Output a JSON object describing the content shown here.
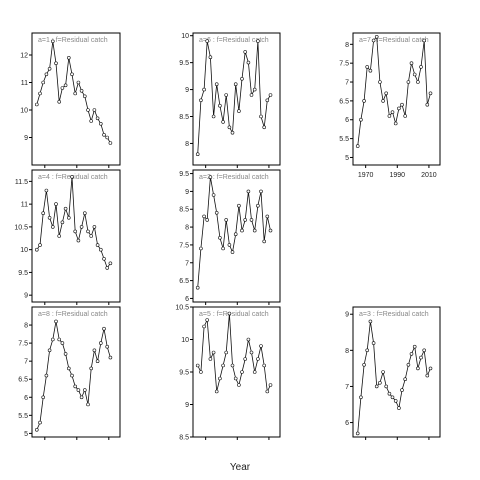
{
  "chart_data": {
    "type": "line",
    "xlabel": "Year",
    "x_ticks": [
      1970,
      1990,
      2010
    ],
    "panels": [
      {
        "title": "a=1 : f=Residual catch",
        "yticks": [
          9,
          10,
          11,
          12
        ],
        "ylim": [
          8.0,
          12.8
        ],
        "x": [
          1965,
          1967,
          1969,
          1971,
          1973,
          1975,
          1977,
          1979,
          1981,
          1983,
          1985,
          1987,
          1989,
          1991,
          1993,
          1995,
          1997,
          1999,
          2001,
          2003,
          2005,
          2007,
          2009,
          2011
        ],
        "y": [
          10.2,
          10.6,
          11.0,
          11.3,
          11.5,
          12.5,
          11.7,
          10.3,
          10.8,
          10.9,
          11.9,
          11.3,
          10.6,
          11.0,
          10.7,
          10.5,
          10.0,
          9.6,
          10.0,
          9.7,
          9.5,
          9.1,
          9.0,
          8.8
        ]
      },
      {
        "title": "a=6 : f=Residual catch",
        "yticks": [
          8.0,
          8.5,
          9.0,
          9.5,
          10.0
        ],
        "ylim": [
          7.6,
          10.05
        ],
        "x": [
          1965,
          1967,
          1969,
          1971,
          1973,
          1975,
          1977,
          1979,
          1981,
          1983,
          1985,
          1987,
          1989,
          1991,
          1993,
          1995,
          1997,
          1999,
          2001,
          2003,
          2005,
          2007,
          2009,
          2011
        ],
        "y": [
          7.8,
          8.8,
          9.0,
          9.9,
          9.6,
          8.5,
          9.1,
          8.7,
          8.4,
          8.9,
          8.3,
          8.2,
          9.1,
          8.6,
          9.2,
          9.7,
          9.5,
          8.9,
          9.0,
          9.9,
          8.5,
          8.3,
          8.8,
          8.9
        ]
      },
      {
        "title": "a=7 : f=Residual catch",
        "yticks": [
          5.0,
          5.5,
          6.0,
          6.5,
          7.0,
          7.5,
          8.0
        ],
        "ylim": [
          4.8,
          8.3
        ],
        "x": [
          1965,
          1967,
          1969,
          1971,
          1973,
          1975,
          1977,
          1979,
          1981,
          1983,
          1985,
          1987,
          1989,
          1991,
          1993,
          1995,
          1997,
          1999,
          2001,
          2003,
          2005,
          2007,
          2009,
          2011
        ],
        "y": [
          5.3,
          6.0,
          6.5,
          7.4,
          7.3,
          8.1,
          8.2,
          7.0,
          6.5,
          6.7,
          6.1,
          6.2,
          5.9,
          6.3,
          6.4,
          6.1,
          7.0,
          7.5,
          7.2,
          7.0,
          7.4,
          8.1,
          6.4,
          6.7
        ]
      },
      {
        "title": "a=4 : f=Residual catch",
        "yticks": [
          9.0,
          9.5,
          10.0,
          10.5,
          11.0,
          11.5
        ],
        "ylim": [
          8.85,
          11.75
        ],
        "x": [
          1965,
          1967,
          1969,
          1971,
          1973,
          1975,
          1977,
          1979,
          1981,
          1983,
          1985,
          1987,
          1989,
          1991,
          1993,
          1995,
          1997,
          1999,
          2001,
          2003,
          2005,
          2007,
          2009,
          2011
        ],
        "y": [
          10.0,
          10.1,
          10.8,
          11.3,
          10.7,
          10.5,
          11.0,
          10.3,
          10.6,
          10.9,
          10.7,
          11.6,
          10.4,
          10.2,
          10.5,
          10.8,
          10.4,
          10.3,
          10.5,
          10.1,
          10.0,
          9.8,
          9.6,
          9.7
        ]
      },
      {
        "title": "a=2 : f=Residual catch",
        "yticks": [
          6.0,
          6.5,
          7.0,
          7.5,
          8.0,
          8.5,
          9.0,
          9.5
        ],
        "ylim": [
          5.9,
          9.6
        ],
        "x": [
          1965,
          1967,
          1969,
          1971,
          1973,
          1975,
          1977,
          1979,
          1981,
          1983,
          1985,
          1987,
          1989,
          1991,
          1993,
          1995,
          1997,
          1999,
          2001,
          2003,
          2005,
          2007,
          2009,
          2011
        ],
        "y": [
          6.3,
          7.4,
          8.3,
          8.2,
          9.4,
          8.9,
          8.4,
          7.7,
          7.4,
          8.2,
          7.5,
          7.3,
          7.8,
          8.6,
          7.9,
          8.2,
          9.0,
          8.2,
          7.9,
          8.6,
          9.0,
          7.6,
          8.3,
          7.9
        ]
      },
      {
        "title": "a=8 : f=Residual catch",
        "yticks": [
          5.0,
          5.5,
          6.0,
          6.5,
          7.0,
          7.5,
          8.0
        ],
        "ylim": [
          4.9,
          8.5
        ],
        "x": [
          1965,
          1967,
          1969,
          1971,
          1973,
          1975,
          1977,
          1979,
          1981,
          1983,
          1985,
          1987,
          1989,
          1991,
          1993,
          1995,
          1997,
          1999,
          2001,
          2003,
          2005,
          2007,
          2009,
          2011
        ],
        "y": [
          5.1,
          5.3,
          6.0,
          6.6,
          7.3,
          7.6,
          8.1,
          7.6,
          7.5,
          7.2,
          6.8,
          6.6,
          6.3,
          6.2,
          6.0,
          6.2,
          5.8,
          6.8,
          7.3,
          7.0,
          7.5,
          7.9,
          7.4,
          7.1
        ]
      },
      {
        "title": "a=5 : f=Residual catch",
        "yticks": [
          8.5,
          9.0,
          9.5,
          10.0,
          10.5
        ],
        "ylim": [
          8.5,
          10.5
        ],
        "x": [
          1965,
          1967,
          1969,
          1971,
          1973,
          1975,
          1977,
          1979,
          1981,
          1983,
          1985,
          1987,
          1989,
          1991,
          1993,
          1995,
          1997,
          1999,
          2001,
          2003,
          2005,
          2007,
          2009,
          2011
        ],
        "y": [
          9.6,
          9.5,
          10.2,
          10.3,
          9.7,
          9.8,
          9.2,
          9.4,
          9.6,
          9.8,
          10.4,
          9.6,
          9.4,
          9.3,
          9.5,
          9.7,
          10.0,
          9.8,
          9.5,
          9.7,
          9.9,
          9.6,
          9.2,
          9.3
        ]
      },
      {
        "title": "a=3 : f=Residual catch",
        "yticks": [
          6,
          7,
          8,
          9
        ],
        "ylim": [
          5.6,
          9.2
        ],
        "x": [
          1965,
          1967,
          1969,
          1971,
          1973,
          1975,
          1977,
          1979,
          1981,
          1983,
          1985,
          1987,
          1989,
          1991,
          1993,
          1995,
          1997,
          1999,
          2001,
          2003,
          2005,
          2007,
          2009,
          2011
        ],
        "y": [
          5.7,
          6.7,
          7.6,
          8.0,
          8.8,
          8.2,
          7.0,
          7.1,
          7.4,
          7.0,
          6.8,
          6.7,
          6.6,
          6.4,
          6.9,
          7.2,
          7.6,
          7.9,
          8.1,
          7.5,
          7.8,
          8.0,
          7.3,
          7.5
        ]
      }
    ]
  }
}
